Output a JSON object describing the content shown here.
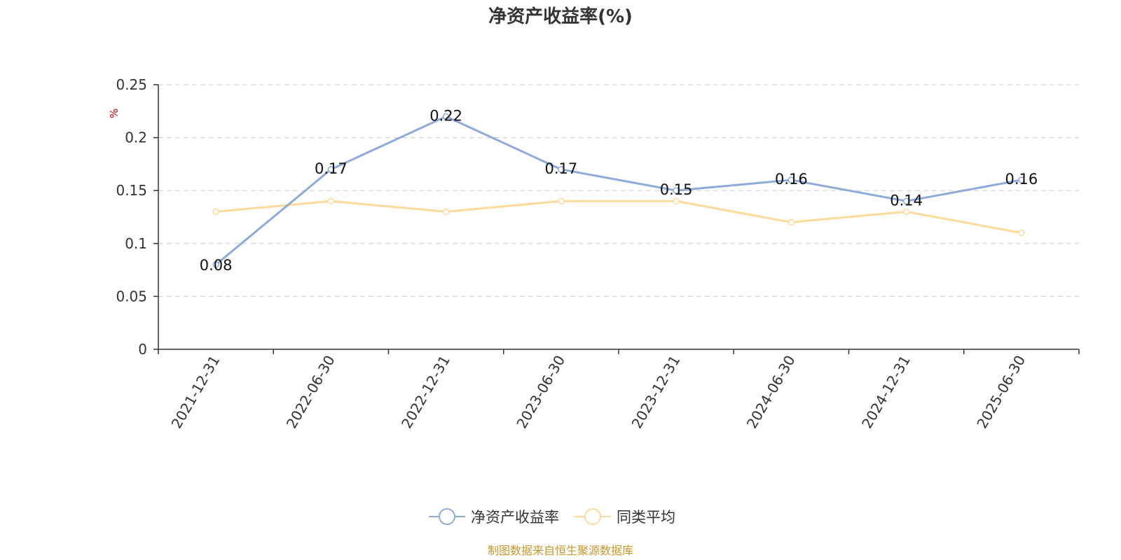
{
  "chart_data": {
    "type": "line",
    "title": "净资产收益率(%)",
    "ylabel": "%",
    "xlabel": "",
    "categories": [
      "2021-12-31",
      "2022-06-30",
      "2022-12-31",
      "2023-06-30",
      "2023-12-31",
      "2024-06-30",
      "2024-12-31",
      "2025-06-30"
    ],
    "series": [
      {
        "name": "净资产收益率",
        "color": "#8eaadb",
        "values": [
          0.08,
          0.17,
          0.22,
          0.17,
          0.15,
          0.16,
          0.14,
          0.16
        ],
        "show_labels": true
      },
      {
        "name": "同类平均",
        "color": "#fdd99a",
        "values": [
          0.13,
          0.14,
          0.13,
          0.14,
          0.14,
          0.12,
          0.13,
          0.11
        ],
        "show_labels": false
      }
    ],
    "ylim": [
      0,
      0.25
    ],
    "yticks": [
      0,
      0.05,
      0.1,
      0.15,
      0.2,
      0.25
    ],
    "ytick_labels": [
      "0",
      "0.05",
      "0.1",
      "0.15",
      "0.2",
      "0.25"
    ],
    "grid": true,
    "legend_position": "bottom-center"
  },
  "source_note": "制图数据来自恒生聚源数据库"
}
